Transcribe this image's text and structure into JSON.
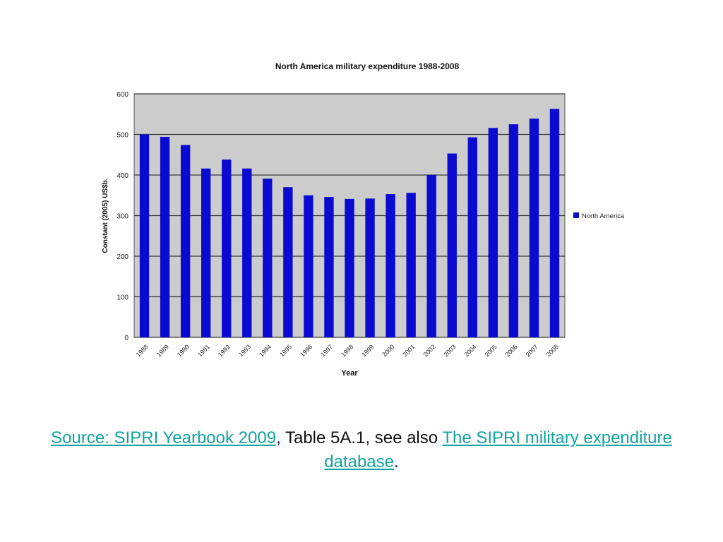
{
  "chart_data": {
    "type": "bar",
    "title": "North America military expenditure 1988-2008",
    "xlabel": "Year",
    "ylabel": "Constant (2005) US$b.",
    "categories": [
      "1988",
      "1989",
      "1990",
      "1991",
      "1992",
      "1993",
      "1994",
      "1995",
      "1996",
      "1997",
      "1998",
      "1999",
      "2000",
      "2001",
      "2002",
      "2003",
      "2004",
      "2005",
      "2006",
      "2007",
      "2008"
    ],
    "series": [
      {
        "name": "North America",
        "values": [
          500,
          494,
          474,
          416,
          438,
          416,
          391,
          370,
          350,
          346,
          341,
          342,
          353,
          356,
          400,
          453,
          493,
          516,
          525,
          539,
          563
        ]
      }
    ],
    "ylim": [
      0,
      600
    ],
    "yticks": [
      0,
      100,
      200,
      300,
      400,
      500,
      600
    ],
    "grid": true,
    "legend_position": "right",
    "colors": {
      "bar": "#0a0ad0",
      "plot_bg": "#cccccc",
      "grid": "#3a3a3a"
    }
  },
  "caption": {
    "link1": "Source: SIPRI Yearbook 2009",
    "text1": ", Table 5A.1, see also ",
    "link2": "The SIPRI military expenditure database",
    "text2": "."
  }
}
